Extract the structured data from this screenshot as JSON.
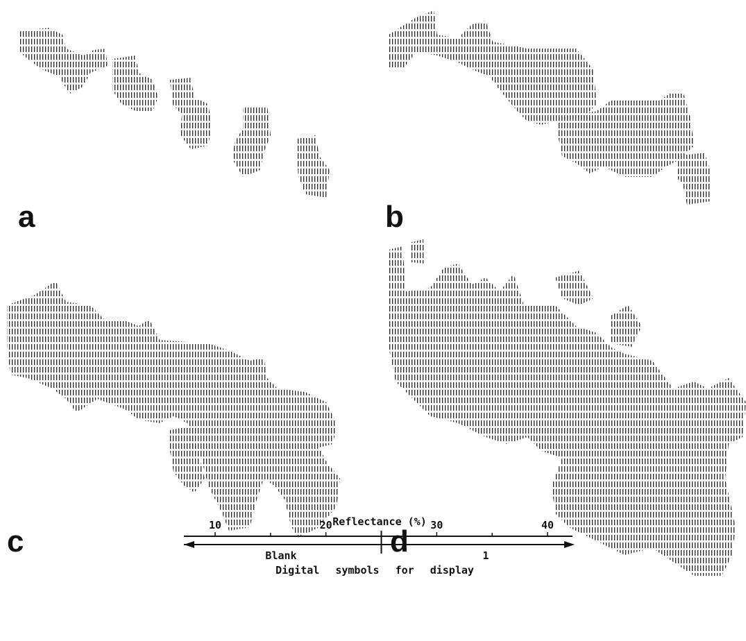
{
  "panels": [
    {
      "label": "a"
    },
    {
      "label": "b"
    },
    {
      "label": "c"
    },
    {
      "label": "d"
    }
  ],
  "scale": {
    "title": "Reflectance (%)",
    "ticks": [
      10,
      20,
      30,
      40
    ],
    "left_label": "Blank",
    "right_label": "1",
    "caption": "Digital symbols for display"
  }
}
